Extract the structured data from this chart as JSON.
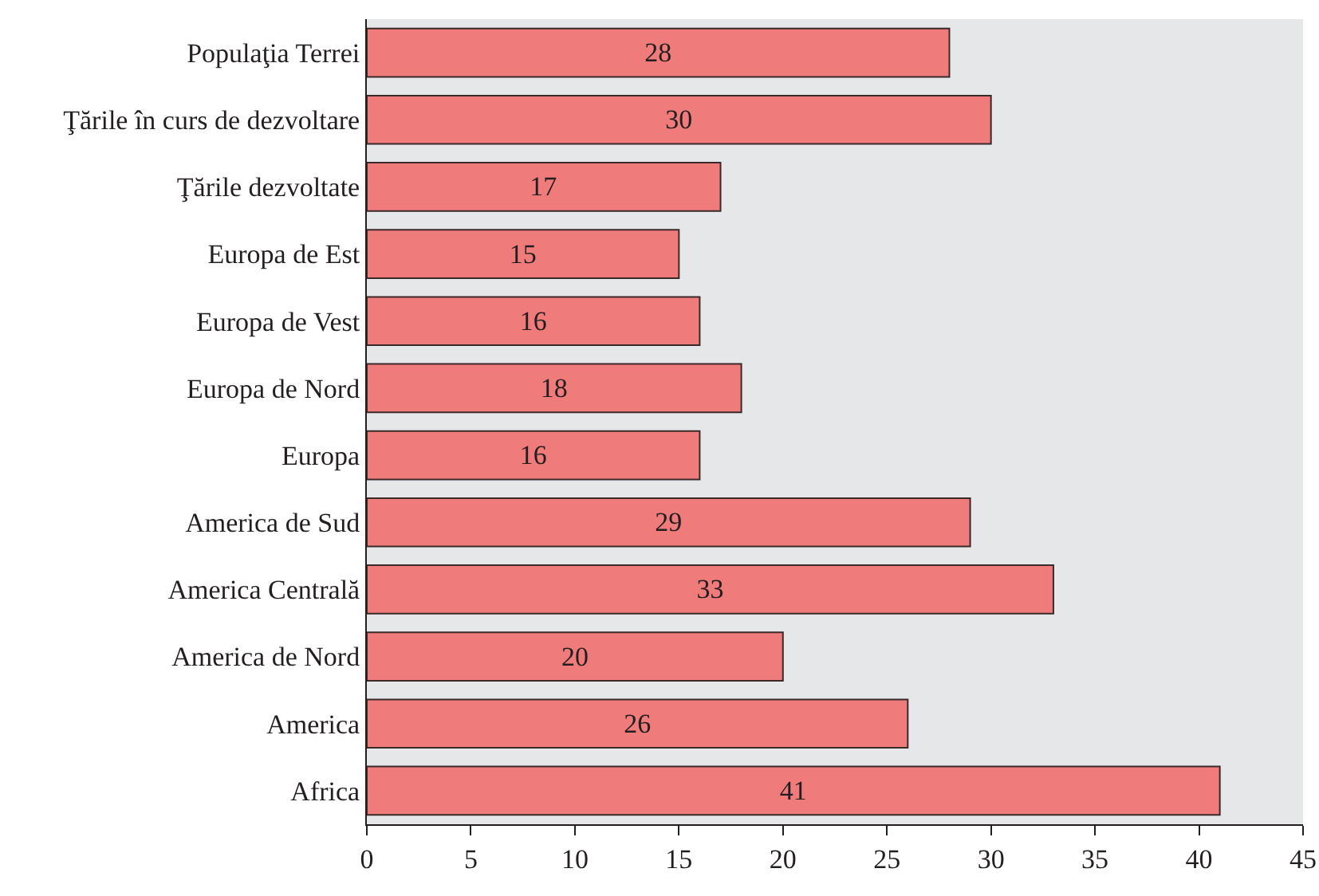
{
  "chart_data": {
    "type": "bar",
    "orientation": "horizontal",
    "categories": [
      "Populaţia Terrei",
      "Ţările în curs de dezvoltare",
      "Ţările dezvoltate",
      "Europa de Est",
      "Europa de Vest",
      "Europa de Nord",
      "Europa",
      "America de Sud",
      "America Centrală",
      "America de Nord",
      "America",
      "Africa"
    ],
    "values": [
      28,
      30,
      17,
      15,
      16,
      18,
      16,
      29,
      33,
      20,
      26,
      41
    ],
    "color": "#f07b7b",
    "xlim": [
      0,
      45
    ],
    "xticks": [
      0,
      5,
      10,
      15,
      20,
      25,
      30,
      35,
      40,
      45
    ],
    "data_labels": true,
    "grid": false,
    "legend": false
  }
}
